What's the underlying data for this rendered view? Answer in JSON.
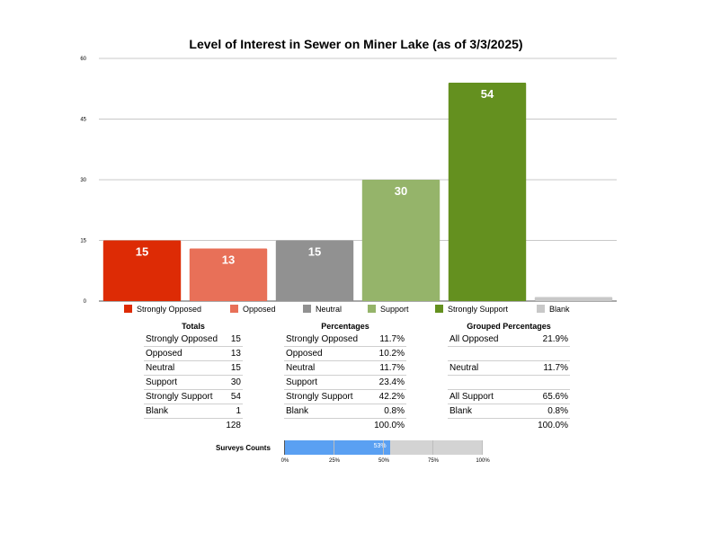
{
  "chart_data": {
    "type": "bar",
    "title": "Level of Interest in Sewer on Miner Lake (as of 3/3/2025)",
    "categories": [
      "Strongly Opposed",
      "Opposed",
      "Neutral",
      "Support",
      "Strongly Support",
      "Blank"
    ],
    "values": [
      15,
      13,
      15,
      30,
      54,
      1
    ],
    "data_labels": [
      "15",
      "13",
      "15",
      "30",
      "54",
      ""
    ],
    "colors": [
      "#dd2b05",
      "#e87058",
      "#919191",
      "#95b46a",
      "#64901f",
      "#c8c8c8"
    ],
    "ylim": [
      0,
      60
    ],
    "yticks": [
      "0",
      "15",
      "30",
      "45",
      "60"
    ],
    "ytick_values": [
      0,
      15,
      30,
      45,
      60
    ],
    "grid": true,
    "legend": "bottom"
  },
  "totals": {
    "title": "Totals",
    "rows": [
      {
        "label": "Strongly Opposed",
        "value": "15"
      },
      {
        "label": "Opposed",
        "value": "13"
      },
      {
        "label": "Neutral",
        "value": "15"
      },
      {
        "label": "Support",
        "value": "30"
      },
      {
        "label": "Strongly Support",
        "value": "54"
      },
      {
        "label": "Blank",
        "value": "1"
      }
    ],
    "total": "128"
  },
  "percentages": {
    "title": "Percentages",
    "rows": [
      {
        "label": "Strongly Opposed",
        "value": "11.7%"
      },
      {
        "label": "Opposed",
        "value": "10.2%"
      },
      {
        "label": "Neutral",
        "value": "11.7%"
      },
      {
        "label": "Support",
        "value": "23.4%"
      },
      {
        "label": "Strongly Support",
        "value": "42.2%"
      },
      {
        "label": "Blank",
        "value": "0.8%"
      }
    ],
    "total": "100.0%"
  },
  "grouped": {
    "title": "Grouped Percentages",
    "rows": [
      {
        "label": "All Opposed",
        "value": "21.9%"
      },
      {
        "label": "",
        "value": ""
      },
      {
        "label": "Neutral",
        "value": "11.7%"
      },
      {
        "label": "",
        "value": ""
      },
      {
        "label": "All Support",
        "value": "65.6%"
      },
      {
        "label": "Blank",
        "value": "0.8%"
      }
    ],
    "total": "100.0%"
  },
  "surveys": {
    "label": "Surveys Counts",
    "progress": 0.53,
    "progress_label": "53%",
    "ticks": [
      "0%",
      "25%",
      "50%",
      "75%",
      "100%"
    ],
    "fill_color": "#5aa0f2"
  }
}
